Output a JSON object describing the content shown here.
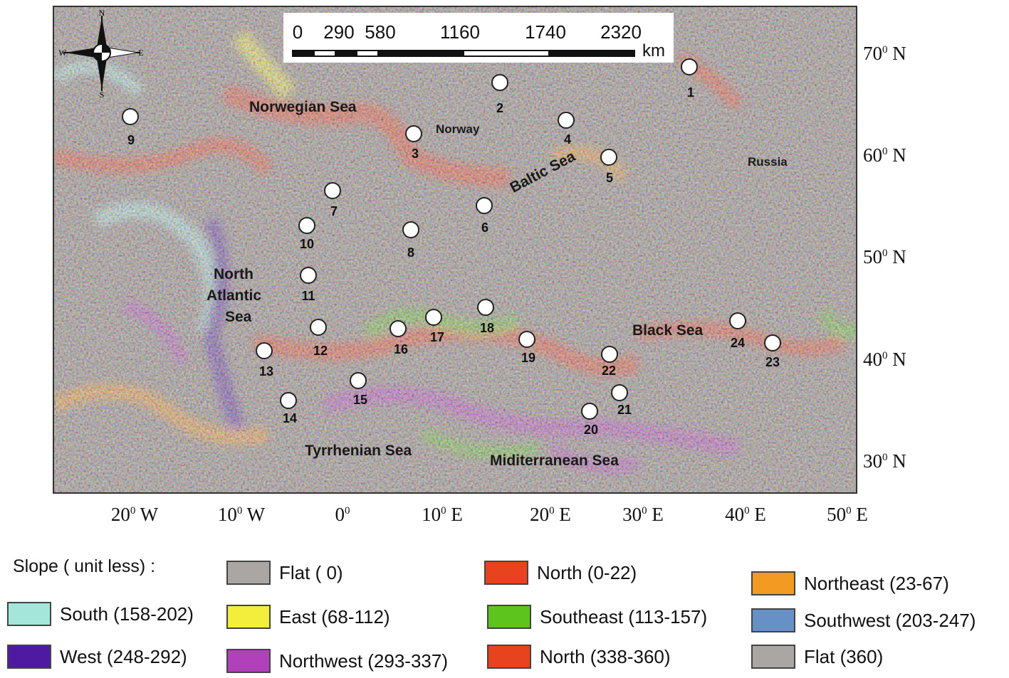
{
  "scale_bar": {
    "ticks": [
      "0",
      "290",
      "580",
      "1160",
      "1740",
      "2320"
    ],
    "unit": "km"
  },
  "compass": {
    "n": "N",
    "s": "S",
    "e": "E",
    "w": "W"
  },
  "places": {
    "norwegian_sea": "Norwegian Sea",
    "norway": "Norway",
    "russia": "Russia",
    "baltic_sea": "Baltic Sea",
    "north_atlantic_1": "North",
    "north_atlantic_2": "Atlantic",
    "north_atlantic_3": "Sea",
    "black_sea": "Black Sea",
    "tyrrhenian_sea": "Tyrrhenian Sea",
    "mediterranean_sea": "Miditerranean Sea"
  },
  "sites": [
    "1",
    "2",
    "3",
    "4",
    "5",
    "6",
    "7",
    "8",
    "9",
    "10",
    "11",
    "12",
    "13",
    "14",
    "15",
    "16",
    "17",
    "18",
    "19",
    "20",
    "21",
    "22",
    "23",
    "24"
  ],
  "lat_ticks": [
    "70",
    "60",
    "50",
    "40",
    "30"
  ],
  "lat_suffix": "N",
  "lon_ticks": [
    {
      "v": "20",
      "h": "W"
    },
    {
      "v": "10",
      "h": "W"
    },
    {
      "v": "0",
      "h": ""
    },
    {
      "v": "10",
      "h": "E"
    },
    {
      "v": "20",
      "h": "E"
    },
    {
      "v": "30",
      "h": "E"
    },
    {
      "v": "40",
      "h": "E"
    },
    {
      "v": "50",
      "h": "E"
    }
  ],
  "degree_mark": "0",
  "legend": {
    "title": "Slope ( unit less) :",
    "items": {
      "flat0": {
        "label": "Flat ( 0)",
        "color": "#a9a6a4"
      },
      "north_0_22": {
        "label": "North (0-22)",
        "color": "#e8431f"
      },
      "northeast": {
        "label": "Northeast (23-67)",
        "color": "#f39a22"
      },
      "south": {
        "label": "South (158-202)",
        "color": "#a4e6d9"
      },
      "east": {
        "label": "East (68-112)",
        "color": "#f3ee3c"
      },
      "southeast": {
        "label": "Southeast (113-157)",
        "color": "#5dc41e"
      },
      "southwest": {
        "label": "Southwest (203-247)",
        "color": "#6690c6"
      },
      "west": {
        "label": "West (248-292)",
        "color": "#4f1aa1"
      },
      "northwest": {
        "label": "Northwest (293-337)",
        "color": "#b141ba"
      },
      "north_338_360": {
        "label": "North (338-360)",
        "color": "#e8431f"
      },
      "flat360": {
        "label": "Flat (360)",
        "color": "#a9a6a4"
      }
    }
  }
}
